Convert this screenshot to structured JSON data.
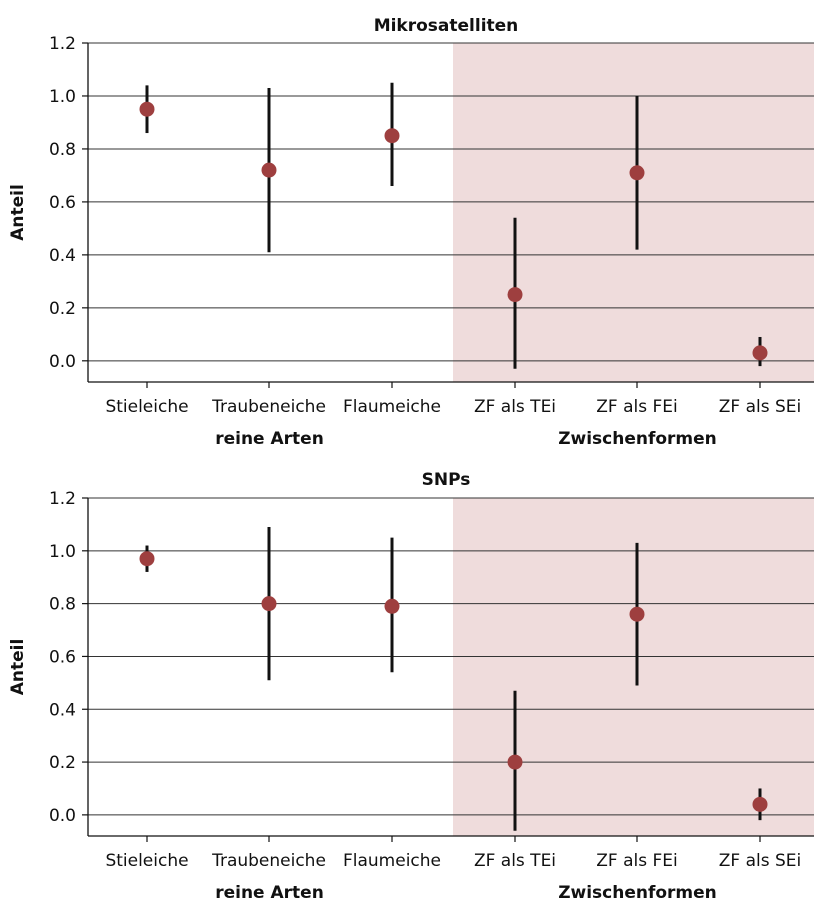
{
  "chart_data": [
    {
      "type": "scatter",
      "title": "Mikrosatelliten",
      "ylabel": "Anteil",
      "ylim": [
        -0.08,
        1.2
      ],
      "yticks": [
        "0.0",
        "0.2",
        "0.4",
        "0.6",
        "0.8",
        "1.0",
        "1.2"
      ],
      "categories": [
        "Stieleiche",
        "Traubeneiche",
        "Flaumeiche",
        "ZF als TEi",
        "ZF als FEi",
        "ZF als SEi"
      ],
      "groups": [
        {
          "label": "reine Arten",
          "categories": [
            0,
            1,
            2
          ]
        },
        {
          "label": "Zwischenformen",
          "categories": [
            3,
            4,
            5
          ],
          "shaded": true
        }
      ],
      "values": [
        0.95,
        0.72,
        0.85,
        0.25,
        0.71,
        0.03
      ],
      "error_low": [
        0.86,
        0.41,
        0.66,
        -0.03,
        0.42,
        -0.02
      ],
      "error_high": [
        1.04,
        1.03,
        1.05,
        0.54,
        1.0,
        0.09
      ],
      "grid": true,
      "colors": {
        "point": "#9e3f3f",
        "errorbar": "#111111",
        "shade": "#efdcdc"
      }
    },
    {
      "type": "scatter",
      "title": "SNPs",
      "ylabel": "Anteil",
      "ylim": [
        -0.08,
        1.2
      ],
      "yticks": [
        "0.0",
        "0.2",
        "0.4",
        "0.6",
        "0.8",
        "1.0",
        "1.2"
      ],
      "categories": [
        "Stieleiche",
        "Traubeneiche",
        "Flaumeiche",
        "ZF als TEi",
        "ZF als FEi",
        "ZF als SEi"
      ],
      "groups": [
        {
          "label": "reine Arten",
          "categories": [
            0,
            1,
            2
          ]
        },
        {
          "label": "Zwischenformen",
          "categories": [
            3,
            4,
            5
          ],
          "shaded": true
        }
      ],
      "values": [
        0.97,
        0.8,
        0.79,
        0.2,
        0.76,
        0.04
      ],
      "error_low": [
        0.92,
        0.51,
        0.54,
        -0.06,
        0.49,
        -0.02
      ],
      "error_high": [
        1.02,
        1.09,
        1.05,
        0.47,
        1.03,
        0.1
      ],
      "grid": true,
      "colors": {
        "point": "#9e3f3f",
        "errorbar": "#111111",
        "shade": "#efdcdc"
      }
    }
  ]
}
